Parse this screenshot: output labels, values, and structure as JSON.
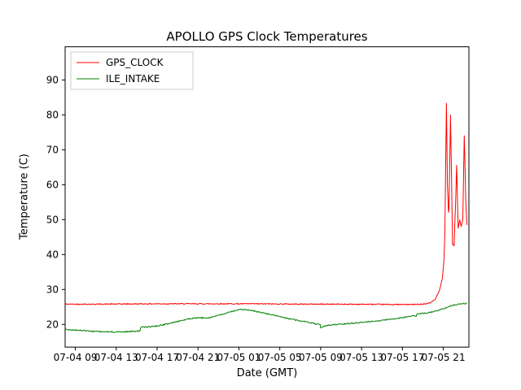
{
  "chart_data": {
    "type": "line",
    "title": "APOLLO GPS Clock Temperatures",
    "xlabel": "Date (GMT)",
    "ylabel": "Temperature (C)",
    "xlim": [
      0,
      39.5
    ],
    "ylim": [
      13.5,
      99.5
    ],
    "x_ticks": [
      1,
      5,
      9,
      13,
      17,
      21,
      25,
      29,
      33,
      37
    ],
    "x_tick_labels": [
      "07-04 09",
      "07-04 13",
      "07-04 17",
      "07-04 21",
      "07-05 01",
      "07-05 05",
      "07-05 09",
      "07-05 13",
      "07-05 17",
      "07-05 21"
    ],
    "y_ticks": [
      20,
      30,
      40,
      50,
      60,
      70,
      80,
      90
    ],
    "grid": false,
    "legend": {
      "position": "upper left",
      "border_color": "#cccccc",
      "background": "#ffffff"
    },
    "series": [
      {
        "name": "GPS_CLOCK",
        "color": "#ff0000",
        "jitter": 0.14,
        "points": [
          [
            0,
            25.8
          ],
          [
            3,
            25.8
          ],
          [
            6,
            25.85
          ],
          [
            9,
            25.9
          ],
          [
            12,
            25.9
          ],
          [
            15,
            25.9
          ],
          [
            18,
            25.9
          ],
          [
            21,
            25.85
          ],
          [
            24,
            25.8
          ],
          [
            27,
            25.8
          ],
          [
            30,
            25.75
          ],
          [
            32,
            25.7
          ],
          [
            33.5,
            25.7
          ],
          [
            34.5,
            25.75
          ],
          [
            35.3,
            25.9
          ],
          [
            35.8,
            26.3
          ],
          [
            36.2,
            27.2
          ],
          [
            36.6,
            29.5
          ],
          [
            36.9,
            33
          ],
          [
            37.05,
            38
          ],
          [
            37.15,
            46
          ],
          [
            37.3,
            83.5
          ],
          [
            37.4,
            60
          ],
          [
            37.5,
            52
          ],
          [
            37.55,
            53
          ],
          [
            37.7,
            80
          ],
          [
            37.8,
            62
          ],
          [
            37.9,
            43
          ],
          [
            38.05,
            42.5
          ],
          [
            38.2,
            55
          ],
          [
            38.3,
            65.5
          ],
          [
            38.45,
            47.5
          ],
          [
            38.6,
            50
          ],
          [
            38.75,
            48
          ],
          [
            38.9,
            50
          ],
          [
            39.05,
            74
          ],
          [
            39.2,
            55
          ],
          [
            39.3,
            48.5
          ]
        ]
      },
      {
        "name": "ILE_INTAKE",
        "color": "#008000",
        "jitter": 0.16,
        "points": [
          [
            0,
            18.6
          ],
          [
            0.7,
            18.45
          ],
          [
            1.5,
            18.3
          ],
          [
            2.5,
            18.05
          ],
          [
            3.5,
            17.9
          ],
          [
            4.5,
            17.85
          ],
          [
            5.5,
            17.85
          ],
          [
            6.3,
            17.95
          ],
          [
            7.0,
            18.1
          ],
          [
            7.3,
            18.15
          ],
          [
            7.4,
            19.15
          ],
          [
            8,
            19.25
          ],
          [
            9,
            19.55
          ],
          [
            10,
            20.15
          ],
          [
            10.8,
            20.7
          ],
          [
            11.5,
            21.2
          ],
          [
            12.2,
            21.6
          ],
          [
            13,
            21.9
          ],
          [
            13.6,
            21.85
          ],
          [
            14.2,
            22.0
          ],
          [
            15,
            22.6
          ],
          [
            15.8,
            23.2
          ],
          [
            16.5,
            23.9
          ],
          [
            17.2,
            24.3
          ],
          [
            17.8,
            24.15
          ],
          [
            18.5,
            23.8
          ],
          [
            19.2,
            23.4
          ],
          [
            20,
            22.9
          ],
          [
            20.8,
            22.4
          ],
          [
            21.5,
            21.9
          ],
          [
            22.2,
            21.5
          ],
          [
            23,
            21.0
          ],
          [
            23.8,
            20.6
          ],
          [
            24.4,
            20.2
          ],
          [
            24.95,
            19.9
          ],
          [
            25.0,
            18.85
          ],
          [
            25.15,
            19.1
          ],
          [
            25.4,
            19.6
          ],
          [
            25.8,
            19.8
          ],
          [
            26.5,
            19.95
          ],
          [
            27.5,
            20.15
          ],
          [
            28.5,
            20.45
          ],
          [
            29.5,
            20.7
          ],
          [
            30.5,
            21.0
          ],
          [
            31.5,
            21.35
          ],
          [
            32.5,
            21.75
          ],
          [
            33.3,
            22.1
          ],
          [
            34.0,
            22.4
          ],
          [
            34.35,
            22.45
          ],
          [
            34.45,
            23.0
          ],
          [
            35.2,
            23.2
          ],
          [
            36,
            23.6
          ],
          [
            36.8,
            24.3
          ],
          [
            37.5,
            25.1
          ],
          [
            38.2,
            25.7
          ],
          [
            38.8,
            25.95
          ],
          [
            39.3,
            26.0
          ]
        ]
      }
    ]
  }
}
